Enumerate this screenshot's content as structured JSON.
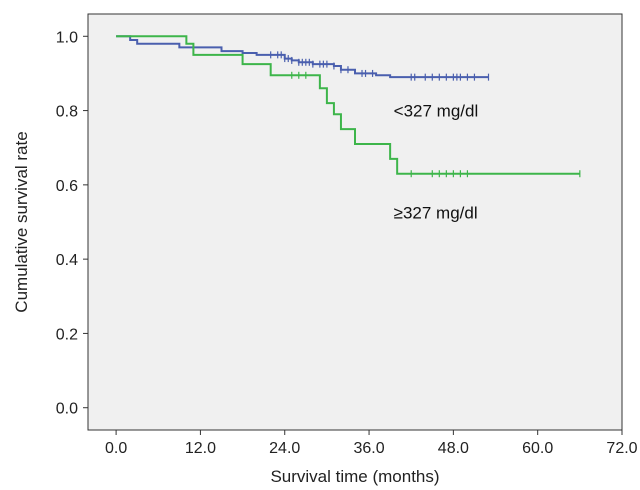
{
  "chart_data": {
    "type": "line",
    "xlabel": "Survival time (months)",
    "ylabel": "Cumulative survival rate",
    "xlim": [
      -4,
      72
    ],
    "ylim": [
      -0.06,
      1.06
    ],
    "xticks": [
      "0.0",
      "12.0",
      "24.0",
      "36.0",
      "48.0",
      "60.0",
      "72.0"
    ],
    "yticks": [
      "0.0",
      "0.2",
      "0.4",
      "0.6",
      "0.8",
      "1.0"
    ],
    "grid": false,
    "background": "#f0f0f0",
    "series": [
      {
        "name": "<327 mg/dl",
        "color": "#4a5fae",
        "steps": [
          [
            0,
            1.0
          ],
          [
            2,
            0.99
          ],
          [
            3,
            0.98
          ],
          [
            9,
            0.97
          ],
          [
            15,
            0.96
          ],
          [
            18,
            0.955
          ],
          [
            20,
            0.95
          ],
          [
            24,
            0.94
          ],
          [
            25,
            0.935
          ],
          [
            26,
            0.93
          ],
          [
            28,
            0.925
          ],
          [
            31,
            0.92
          ],
          [
            32,
            0.91
          ],
          [
            34,
            0.9
          ],
          [
            37,
            0.895
          ],
          [
            39,
            0.89
          ],
          [
            53,
            0.89
          ]
        ],
        "censored": [
          22,
          23,
          23.5,
          24,
          24.5,
          25,
          26,
          26.5,
          27,
          27.5,
          28,
          29,
          29.5,
          30,
          31,
          32,
          33,
          35,
          35.5,
          36.5,
          42,
          42.5,
          44,
          45,
          46,
          47,
          48,
          48.5,
          49,
          50,
          51,
          53
        ]
      },
      {
        "name": "≥327 mg/dl",
        "color": "#3db54a",
        "steps": [
          [
            0,
            1.0
          ],
          [
            10,
            0.98
          ],
          [
            11,
            0.95
          ],
          [
            18,
            0.925
          ],
          [
            22,
            0.895
          ],
          [
            29,
            0.86
          ],
          [
            30,
            0.82
          ],
          [
            31,
            0.79
          ],
          [
            32,
            0.75
          ],
          [
            34,
            0.71
          ],
          [
            39,
            0.67
          ],
          [
            40,
            0.63
          ],
          [
            66,
            0.63
          ]
        ],
        "censored": [
          25,
          26,
          27,
          42,
          45,
          46,
          47,
          48,
          49,
          50,
          66
        ]
      }
    ],
    "annotations": [
      "<327 mg/dl",
      "≥327 mg/dl"
    ]
  }
}
